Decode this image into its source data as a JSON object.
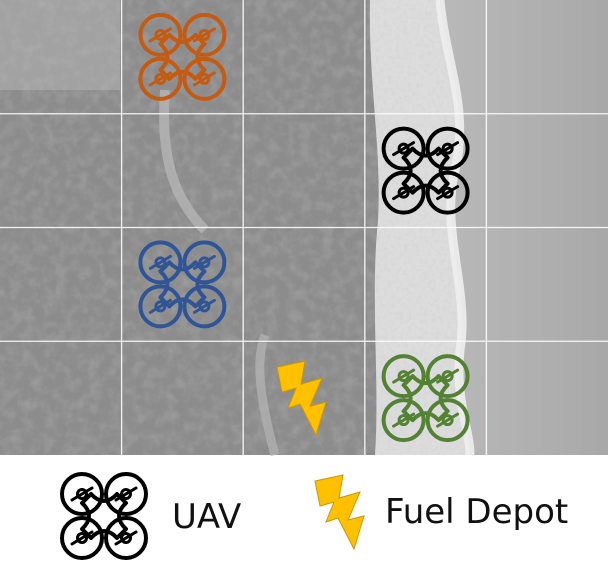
{
  "grid": {
    "rows": 4,
    "cols": 5
  },
  "uavs": [
    {
      "color": "#C55A11",
      "cell": [
        0,
        1
      ],
      "icon": "quadcopter-icon"
    },
    {
      "color": "#000000",
      "cell": [
        1,
        3
      ],
      "icon": "quadcopter-icon"
    },
    {
      "color": "#2F5597",
      "cell": [
        2,
        1
      ],
      "icon": "quadcopter-icon"
    },
    {
      "color": "#548235",
      "cell": [
        3,
        3
      ],
      "icon": "quadcopter-icon"
    }
  ],
  "fuel_depots": [
    {
      "color": "#FFC000",
      "cell": [
        3,
        2
      ],
      "icon": "lightning-bolt-icon"
    }
  ],
  "legend": {
    "uav_label": "UAV",
    "uav_icon": "quadcopter-icon",
    "uav_color": "#000000",
    "fuel_label": "Fuel Depot",
    "fuel_icon": "lightning-bolt-icon",
    "fuel_color": "#FFC000"
  }
}
